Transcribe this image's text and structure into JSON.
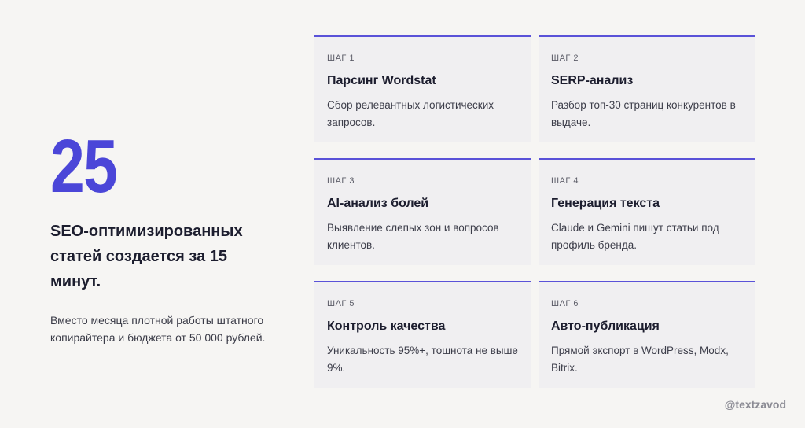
{
  "hero": {
    "number": "25",
    "headline": "SEO-оптимизированных статей создается за 15 минут.",
    "subtext": "Вместо месяца плотной работы штатного копирайтера и бюджета от 50 000 рублей."
  },
  "steps": [
    {
      "label": "ШАГ 1",
      "title": "Парсинг Wordstat",
      "desc": "Сбор релевантных логистических запросов."
    },
    {
      "label": "ШАГ 2",
      "title": "SERP-анализ",
      "desc": "Разбор топ-30 страниц конкурентов в выдаче."
    },
    {
      "label": "ШАГ 3",
      "title": "AI-анализ болей",
      "desc": "Выявление слепых зон и вопросов клиентов."
    },
    {
      "label": "ШАГ 4",
      "title": "Генерация текста",
      "desc": "Claude и Gemini пишут статьи под профиль бренда."
    },
    {
      "label": "ШАГ 5",
      "title": "Контроль качества",
      "desc": "Уникальность 95%+, тошнота не выше 9%."
    },
    {
      "label": "ШАГ 6",
      "title": "Авто-публикация",
      "desc": "Прямой экспорт в WordPress, Modx, Bitrix."
    }
  ],
  "footer": {
    "handle": "@textzavod"
  },
  "colors": {
    "accent": "#4b46d8",
    "background": "#f6f5f3",
    "card": "#f0eff1"
  }
}
